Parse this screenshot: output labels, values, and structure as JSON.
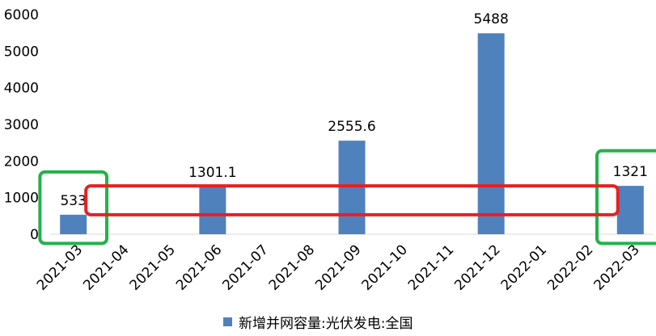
{
  "chart_data": {
    "type": "bar",
    "categories": [
      "2021-03",
      "2021-04",
      "2021-05",
      "2021-06",
      "2021-07",
      "2021-08",
      "2021-09",
      "2021-10",
      "2021-11",
      "2021-12",
      "2022-01",
      "2022-02",
      "2022-03"
    ],
    "series": [
      {
        "name": "新增并网容量:光伏发电:全国",
        "values": [
          533,
          null,
          null,
          1301.1,
          null,
          null,
          2555.6,
          null,
          null,
          5488,
          null,
          null,
          1321
        ],
        "data_labels": [
          "533",
          "",
          "",
          "1301.1",
          "",
          "",
          "2555.6",
          "",
          "",
          "5488",
          "",
          "",
          "1321"
        ]
      }
    ],
    "ylim": [
      0,
      6000
    ],
    "yticks": [
      0,
      1000,
      2000,
      3000,
      4000,
      5000,
      6000
    ],
    "grid": false,
    "legend_placement": "bottom",
    "bar_color": "#4f81bd",
    "annotations": [
      {
        "type": "rounded-rectangle",
        "color": "#22b14c",
        "category_start": "2021-03",
        "category_end": "2021-03",
        "y_min": -250,
        "y_max": 1700
      },
      {
        "type": "rounded-rectangle",
        "color": "#22b14c",
        "category_start": "2022-03",
        "category_end": "2022-03",
        "y_min": -250,
        "y_max": 2280
      },
      {
        "type": "rounded-rectangle",
        "color": "#e82020",
        "category_start": "2021-04",
        "category_end": "2022-02",
        "y_min": 533,
        "y_max": 1321
      }
    ]
  }
}
